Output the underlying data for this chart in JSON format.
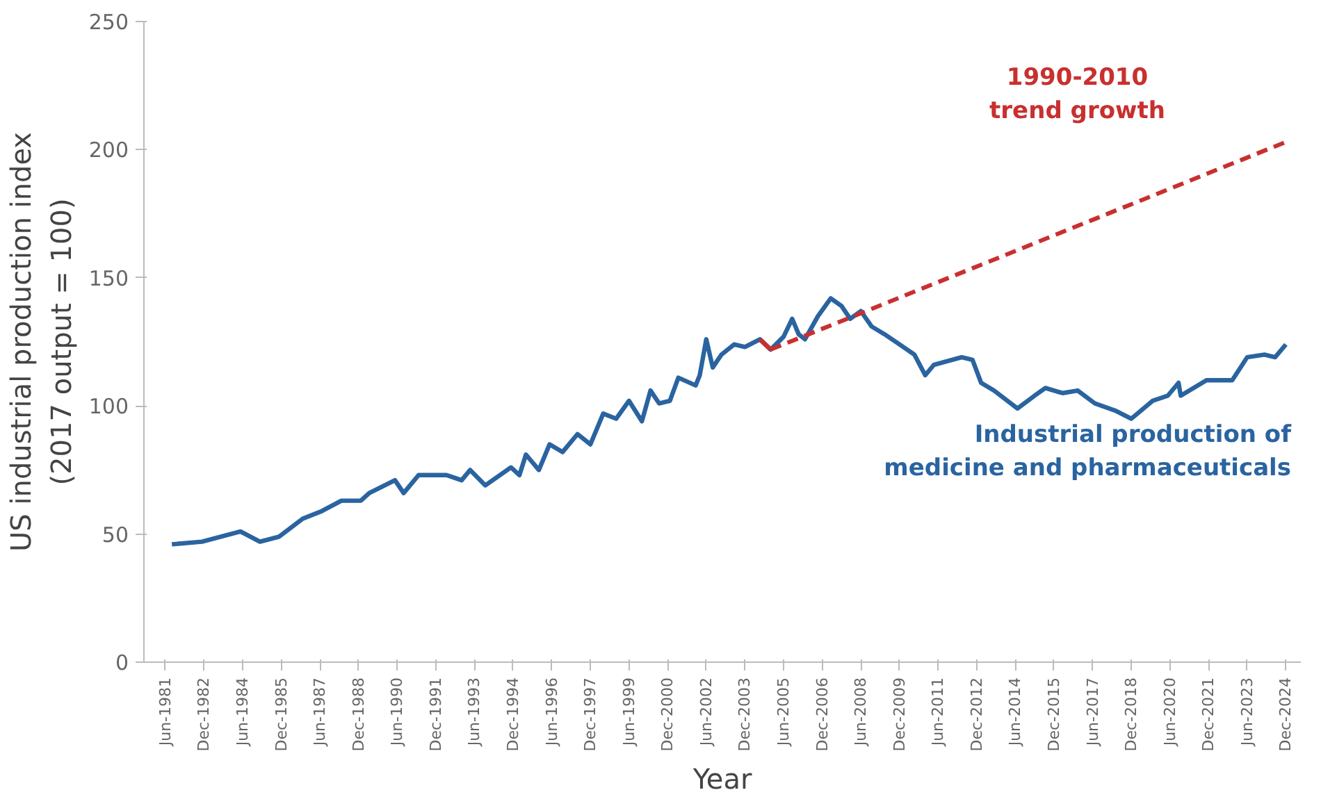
{
  "chart_data": {
    "type": "line",
    "xlabel": "Year",
    "ylabel": "US industrial production index\n(2017 output = 100)",
    "xlim": [
      "1980-08",
      "2025-07"
    ],
    "ylim": [
      0,
      250
    ],
    "yticks": [
      0,
      50,
      100,
      150,
      200,
      250
    ],
    "xticks": [
      {
        "value": "1981-06",
        "label": "Jun-1981"
      },
      {
        "value": "1982-12",
        "label": "Dec-1982"
      },
      {
        "value": "1984-06",
        "label": "Jun-1984"
      },
      {
        "value": "1985-12",
        "label": "Dec-1985"
      },
      {
        "value": "1987-06",
        "label": "Jun-1987"
      },
      {
        "value": "1988-12",
        "label": "Dec-1988"
      },
      {
        "value": "1990-06",
        "label": "Jun-1990"
      },
      {
        "value": "1991-12",
        "label": "Dec-1991"
      },
      {
        "value": "1993-06",
        "label": "Jun-1993"
      },
      {
        "value": "1994-12",
        "label": "Dec-1994"
      },
      {
        "value": "1996-06",
        "label": "Jun-1996"
      },
      {
        "value": "1997-12",
        "label": "Dec-1997"
      },
      {
        "value": "1999-06",
        "label": "Jun-1999"
      },
      {
        "value": "2000-12",
        "label": "Dec-2000"
      },
      {
        "value": "2002-06",
        "label": "Jun-2002"
      },
      {
        "value": "2003-12",
        "label": "Dec-2003"
      },
      {
        "value": "2005-06",
        "label": "Jun-2005"
      },
      {
        "value": "2006-12",
        "label": "Dec-2006"
      },
      {
        "value": "2008-06",
        "label": "Jun-2008"
      },
      {
        "value": "2009-12",
        "label": "Dec-2009"
      },
      {
        "value": "2011-06",
        "label": "Jun-2011"
      },
      {
        "value": "2012-12",
        "label": "Dec-2012"
      },
      {
        "value": "2014-06",
        "label": "Jun-2014"
      },
      {
        "value": "2015-12",
        "label": "Dec-2015"
      },
      {
        "value": "2017-06",
        "label": "Jun-2017"
      },
      {
        "value": "2018-12",
        "label": "Dec-2018"
      },
      {
        "value": "2020-06",
        "label": "Jun-2020"
      },
      {
        "value": "2021-12",
        "label": "Dec-2021"
      },
      {
        "value": "2023-06",
        "label": "Jun-2023"
      },
      {
        "value": "2024-12",
        "label": "Dec-2024"
      }
    ],
    "grid": false,
    "marker": "none",
    "series": [
      {
        "name": "Industrial production of\nmedicine and pharmaceuticals",
        "color": "#2a64a0",
        "line_style": "solid",
        "x": [
          "1981-09",
          "1982-11",
          "1984-05",
          "1985-02",
          "1985-11",
          "1986-10",
          "1987-07",
          "1988-04",
          "1989-01",
          "1989-05",
          "1990-05",
          "1990-09",
          "1991-04",
          "1992-05",
          "1992-12",
          "1993-04",
          "1993-11",
          "1994-11",
          "1995-03",
          "1995-06",
          "1995-12",
          "1996-05",
          "1996-11",
          "1997-06",
          "1997-12",
          "1998-06",
          "1998-12",
          "1999-06",
          "1999-12",
          "2000-04",
          "2000-08",
          "2001-01",
          "2001-05",
          "2002-01",
          "2002-03",
          "2002-06",
          "2002-09",
          "2003-01",
          "2003-07",
          "2003-12",
          "2004-07",
          "2004-12",
          "2005-06",
          "2005-10",
          "2006-01",
          "2006-04",
          "2006-10",
          "2007-04",
          "2007-09",
          "2008-01",
          "2008-06",
          "2008-11",
          "2009-05",
          "2009-12",
          "2010-07",
          "2010-12",
          "2011-04",
          "2012-05",
          "2012-10",
          "2013-02",
          "2013-08",
          "2014-07",
          "2015-03",
          "2015-08",
          "2016-04",
          "2016-11",
          "2017-07",
          "2018-05",
          "2018-12",
          "2019-10",
          "2020-05",
          "2020-10",
          "2020-11",
          "2021-11",
          "2022-11",
          "2023-06",
          "2024-02",
          "2024-07",
          "2024-12"
        ],
        "values": [
          46,
          47,
          51,
          47,
          49,
          56,
          59,
          63,
          63,
          66,
          71,
          66,
          73,
          73,
          71,
          75,
          69,
          76,
          73,
          81,
          75,
          85,
          82,
          89,
          85,
          97,
          95,
          102,
          94,
          106,
          101,
          102,
          111,
          108,
          112,
          126,
          115,
          120,
          124,
          123,
          126,
          122,
          127,
          134,
          128,
          126,
          135,
          142,
          139,
          134,
          137,
          131,
          128,
          124,
          120,
          112,
          116,
          119,
          118,
          109,
          106,
          99,
          104,
          107,
          105,
          106,
          101,
          98,
          95,
          102,
          104,
          109,
          104,
          110,
          110,
          119,
          120,
          119,
          124
        ]
      },
      {
        "color": "#c8302f",
        "line_style": "solid",
        "x": [
          "2004-07",
          "2004-12"
        ],
        "values": [
          126,
          122
        ]
      },
      {
        "name": "1990-2010\ntrend growth",
        "color": "#c8302f",
        "line_style": "dashed",
        "x": [
          "2004-12",
          "2024-12"
        ],
        "values": [
          122,
          203
        ]
      }
    ]
  }
}
